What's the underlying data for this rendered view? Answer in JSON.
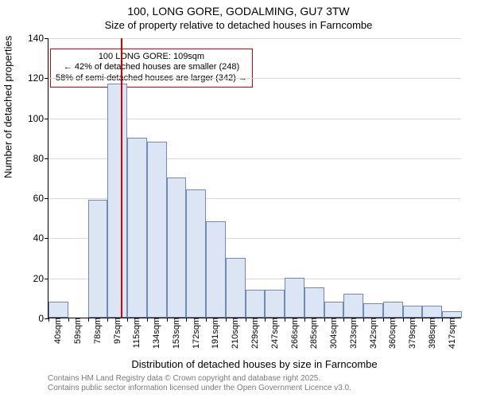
{
  "chart": {
    "type": "histogram",
    "title_line1": "100, LONG GORE, GODALMING, GU7 3TW",
    "title_line2": "Size of property relative to detached houses in Farncombe",
    "title_fontsize": 14,
    "subtitle_fontsize": 13,
    "background_color": "#ffffff",
    "grid_color": "#d9d9d9",
    "axis_color": "#000000",
    "bar_fill": "#dbe5f4",
    "bar_border": "#6f89b8",
    "bar_border_width": 1,
    "marker_color": "#d40000",
    "ylabel": "Number of detached properties",
    "xlabel": "Distribution of detached houses by size in Farncombe",
    "label_fontsize": 13,
    "tick_fontsize": 12,
    "ylim": [
      0,
      140
    ],
    "ytick_step": 20,
    "xticks": [
      "40sqm",
      "59sqm",
      "78sqm",
      "97sqm",
      "115sqm",
      "134sqm",
      "153sqm",
      "172sqm",
      "191sqm",
      "210sqm",
      "229sqm",
      "247sqm",
      "266sqm",
      "285sqm",
      "304sqm",
      "323sqm",
      "342sqm",
      "360sqm",
      "379sqm",
      "398sqm",
      "417sqm"
    ],
    "values": [
      8,
      0,
      59,
      117,
      90,
      88,
      70,
      64,
      48,
      30,
      14,
      14,
      20,
      15,
      8,
      12,
      7,
      8,
      6,
      6,
      3
    ],
    "bar_width_ratio": 1.0,
    "marker": {
      "position_index": 3.67,
      "annotation_line1": "100 LONG GORE: 109sqm",
      "annotation_line2": "← 42% of detached houses are smaller (248)",
      "annotation_line3": "58% of semi-detached houses are larger (342) →",
      "annotation_top_value": 135,
      "annotation_fontsize": 11
    },
    "footer_line1": "Contains HM Land Registry data © Crown copyright and database right 2025.",
    "footer_line2": "Contains public sector information licensed under the Open Government Licence v3.0.",
    "footer_color": "#7a7a7a",
    "footer_fontsize": 10
  }
}
